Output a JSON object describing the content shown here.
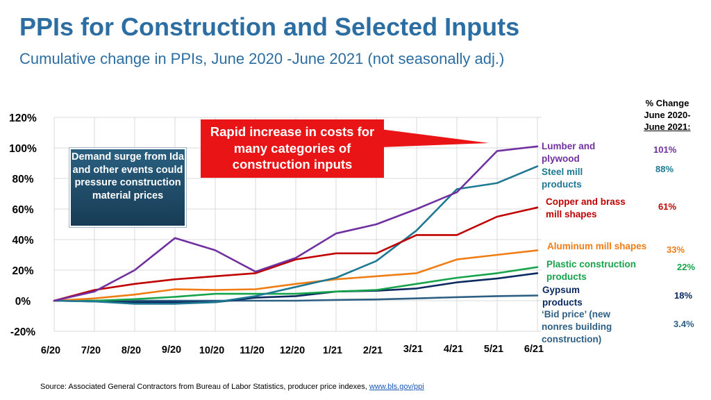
{
  "header": {
    "title": "PPIs for Construction and Selected Inputs",
    "subtitle": "Cumulative change in PPIs, June 2020 -June 2021 (not seasonally adj.)"
  },
  "annotations": {
    "demand_box": "Demand surge from Ida and other events could pressure construction material prices",
    "callout": "Rapid increase in costs for many categories of construction inputs"
  },
  "pct_header": {
    "line1": "% Change",
    "line2": "June 2020-",
    "line3": "June 2021:"
  },
  "series_labels": {
    "lumber": "Lumber and plywood",
    "steel": "Steel mill products",
    "copper": "Copper and brass mill shapes",
    "aluminum": "Aluminum mill shapes",
    "plastic": "Plastic construction products",
    "gypsum": "Gypsum products",
    "bid": "‘Bid price’ (new nonres building construction)"
  },
  "pct_values": {
    "lumber": "101%",
    "steel": "88%",
    "copper": "61%",
    "aluminum": "33%",
    "plastic": "22%",
    "gypsum": "18%",
    "bid": "3.4%"
  },
  "source": {
    "text": "Source: Associated General Contractors from Bureau of Labor Statistics, producer price indexes, ",
    "link": "www.bls.gov/ppi"
  },
  "chart_data": {
    "type": "line",
    "title": "PPIs for Construction and Selected Inputs",
    "categories": [
      "6/20",
      "7/20",
      "8/20",
      "9/20",
      "10/20",
      "11/20",
      "12/20",
      "1/21",
      "2/21",
      "3/21",
      "4/21",
      "5/21",
      "6/21"
    ],
    "y_ticks": [
      "120%",
      "100%",
      "80%",
      "60%",
      "40%",
      "20%",
      "0%",
      "-20%"
    ],
    "ylim": [
      -20,
      120
    ],
    "grid": true,
    "series": [
      {
        "name": "Lumber and plywood",
        "key": "lumber",
        "color": "#7030a0",
        "values": [
          0,
          6,
          20,
          41,
          33,
          19,
          28,
          44,
          50,
          60,
          71,
          98,
          101
        ]
      },
      {
        "name": "Steel mill products",
        "key": "steel",
        "color": "#1f7893",
        "values": [
          0,
          -0.5,
          -2,
          -2,
          -1,
          3,
          9,
          15,
          26,
          46,
          73,
          77,
          88
        ]
      },
      {
        "name": "Copper and brass mill shapes",
        "key": "copper",
        "color": "#c00000",
        "values": [
          0,
          7,
          11,
          14,
          16,
          18,
          27,
          31,
          31,
          43,
          43,
          55,
          61
        ]
      },
      {
        "name": "Aluminum mill shapes",
        "key": "aluminum",
        "color": "#f07c14",
        "values": [
          0,
          1.5,
          4,
          7.5,
          7,
          7.5,
          11,
          14,
          16,
          18,
          27,
          30,
          33
        ]
      },
      {
        "name": "Plastic construction products",
        "key": "plastic",
        "color": "#16a34a",
        "values": [
          0,
          0,
          1,
          2.5,
          4.5,
          4.5,
          4.5,
          6,
          7,
          11,
          15,
          18,
          22
        ]
      },
      {
        "name": "Gypsum products",
        "key": "gypsum",
        "color": "#0b2a60",
        "values": [
          0,
          -0.5,
          -1,
          -1,
          -1,
          2,
          3,
          6,
          6.5,
          8,
          12,
          14.5,
          18
        ]
      },
      {
        "name": "'Bid price' (new nonres building construction)",
        "key": "bid",
        "color": "#2d5f85",
        "values": [
          0,
          0,
          0,
          0,
          0,
          0,
          0,
          0.5,
          0.8,
          1.5,
          2.3,
          3,
          3.4
        ]
      }
    ]
  }
}
